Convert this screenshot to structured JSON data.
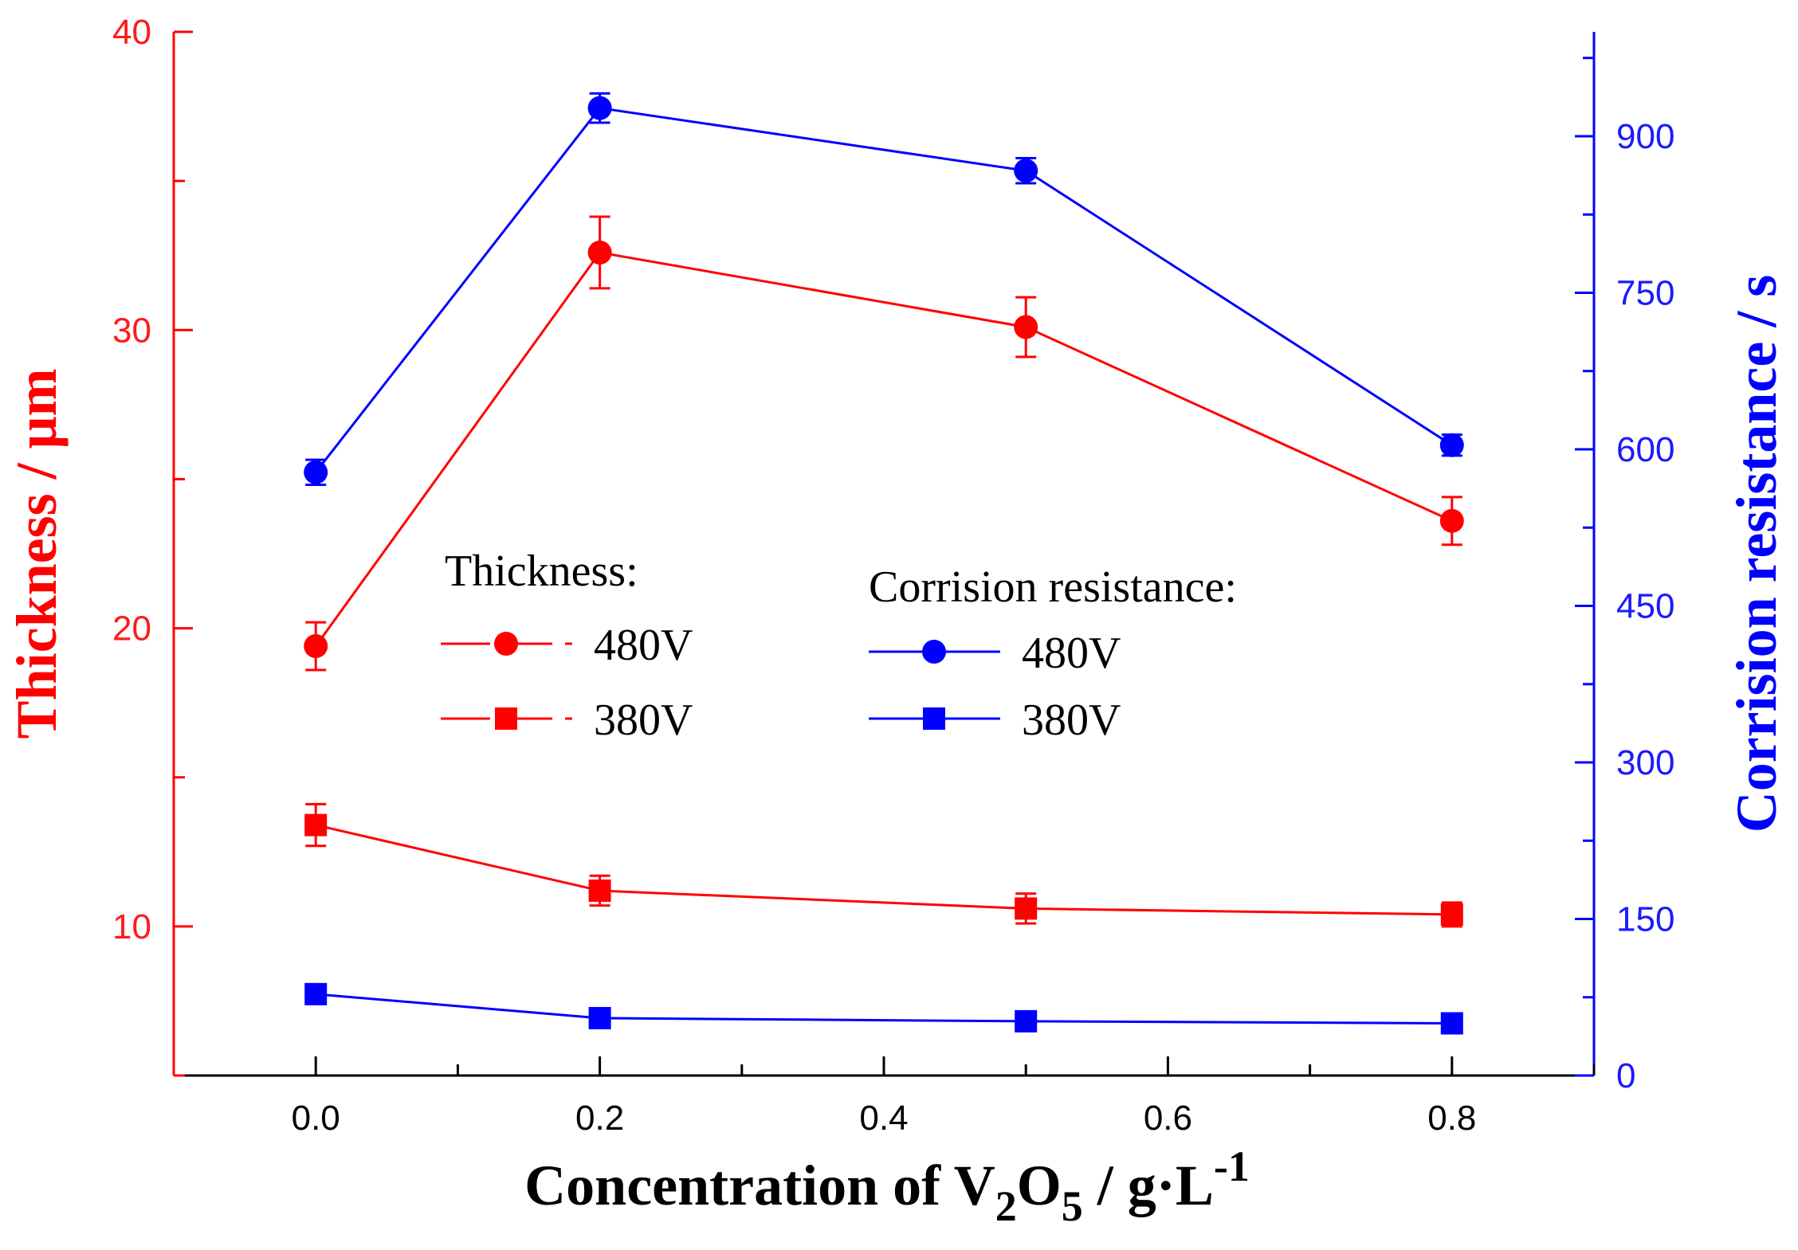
{
  "chart_data": {
    "type": "line",
    "x": [
      0.0,
      0.2,
      0.5,
      0.8
    ],
    "x_ticks": [
      "0.0",
      "0.2",
      "0.4",
      "0.6",
      "0.8"
    ],
    "xlim": [
      -0.1,
      0.9
    ],
    "xlabel": {
      "main": "Concentration of V",
      "sub1": "2",
      "mid": "O",
      "sub2": "5",
      "tail": " / g·L",
      "sup": "-1"
    },
    "y_left": {
      "label": "Thickness / μm",
      "lim": [
        5,
        40
      ],
      "ticks": [
        "10",
        "20",
        "30",
        "40"
      ],
      "color": "#ff0000"
    },
    "y_right": {
      "label": "Corrision resistance / s",
      "lim": [
        0,
        1000
      ],
      "ticks": [
        "0",
        "150",
        "300",
        "450",
        "600",
        "750",
        "900"
      ],
      "color": "#0000ff"
    },
    "series": [
      {
        "name": "Thickness 480V",
        "axis": "left",
        "marker": "circle",
        "color": "#ff0000",
        "values": [
          19.4,
          32.6,
          30.1,
          23.6
        ],
        "errors": [
          0.8,
          1.2,
          1.0,
          0.8
        ]
      },
      {
        "name": "Thickness 380V",
        "axis": "left",
        "marker": "square",
        "color": "#ff0000",
        "values": [
          13.4,
          11.2,
          10.6,
          10.4
        ],
        "errors": [
          0.7,
          0.5,
          0.5,
          0.4
        ]
      },
      {
        "name": "Corrision resistance 480V",
        "axis": "right",
        "marker": "circle",
        "color": "#0000ff",
        "values": [
          578,
          927,
          867,
          604
        ],
        "errors": [
          12,
          14,
          12,
          10
        ]
      },
      {
        "name": "Corrision resistance 380V",
        "axis": "right",
        "marker": "square",
        "color": "#0000ff",
        "values": [
          78,
          55,
          52,
          50
        ],
        "errors": [
          0,
          0,
          0,
          0
        ]
      }
    ],
    "legend": {
      "thickness_title": "Thickness:",
      "corrosion_title": "Corrision resistance:",
      "entries": [
        "480V",
        "380V",
        "480V",
        "380V"
      ]
    }
  }
}
